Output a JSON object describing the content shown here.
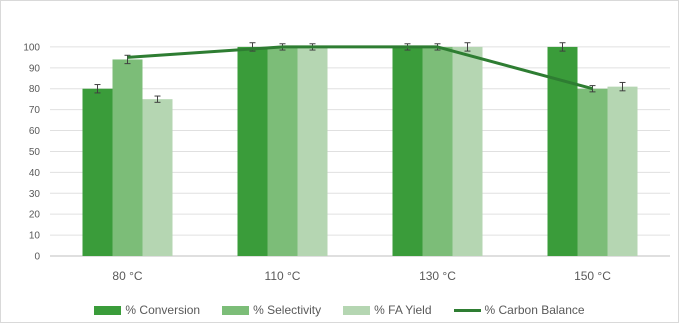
{
  "chart_data": {
    "type": "bar",
    "categories": [
      "80 °C",
      "110 °C",
      "130 °C",
      "150 °C"
    ],
    "y_ticks": [
      "0",
      "10",
      "20",
      "30",
      "40",
      "50",
      "60",
      "70",
      "80",
      "90",
      "100"
    ],
    "ylim": [
      0,
      110
    ],
    "grid": true,
    "legend_position": "bottom",
    "series": [
      {
        "name": "% Conversion",
        "kind": "bar",
        "color": "#3a9c3a",
        "values": [
          80,
          100,
          100,
          100
        ],
        "errors": [
          2,
          2,
          1.5,
          2
        ]
      },
      {
        "name": "% Selectivity",
        "kind": "bar",
        "color": "#7cbd78",
        "values": [
          94,
          100,
          100,
          80
        ],
        "errors": [
          2,
          1.5,
          1.5,
          1.5
        ]
      },
      {
        "name": "% FA Yield",
        "kind": "bar",
        "color": "#b5d6b2",
        "values": [
          75,
          100,
          100,
          81
        ],
        "errors": [
          1.5,
          1.5,
          2,
          2
        ]
      },
      {
        "name": "% Carbon Balance",
        "kind": "line",
        "color": "#2e7d32",
        "values": [
          95,
          100,
          100,
          80
        ]
      }
    ]
  }
}
